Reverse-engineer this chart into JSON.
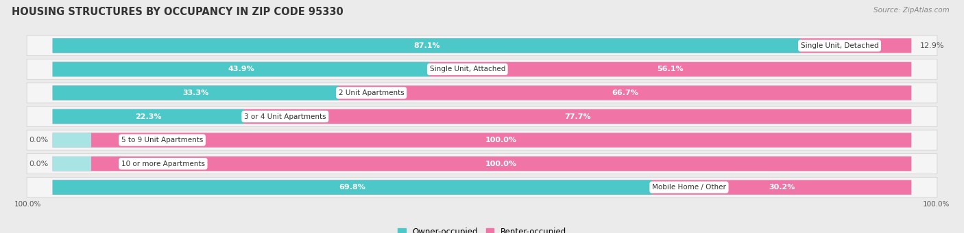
{
  "title": "HOUSING STRUCTURES BY OCCUPANCY IN ZIP CODE 95330",
  "source": "Source: ZipAtlas.com",
  "categories": [
    "Single Unit, Detached",
    "Single Unit, Attached",
    "2 Unit Apartments",
    "3 or 4 Unit Apartments",
    "5 to 9 Unit Apartments",
    "10 or more Apartments",
    "Mobile Home / Other"
  ],
  "owner_pct": [
    87.1,
    43.9,
    33.3,
    22.3,
    0.0,
    0.0,
    69.8
  ],
  "renter_pct": [
    12.9,
    56.1,
    66.7,
    77.7,
    100.0,
    100.0,
    30.2
  ],
  "owner_color": "#4DC8C8",
  "renter_color": "#F075A6",
  "owner_color_light": "#A8E4E4",
  "renter_color_light": "#F8B4CF",
  "bg_color": "#EBEBEB",
  "row_bg_color": "#F5F5F5",
  "title_fontsize": 10.5,
  "label_fontsize": 7.5,
  "pct_fontsize": 8,
  "bar_height": 0.62,
  "legend_owner": "Owner-occupied",
  "legend_renter": "Renter-occupied",
  "xlim_left": -5,
  "xlim_right": 105
}
